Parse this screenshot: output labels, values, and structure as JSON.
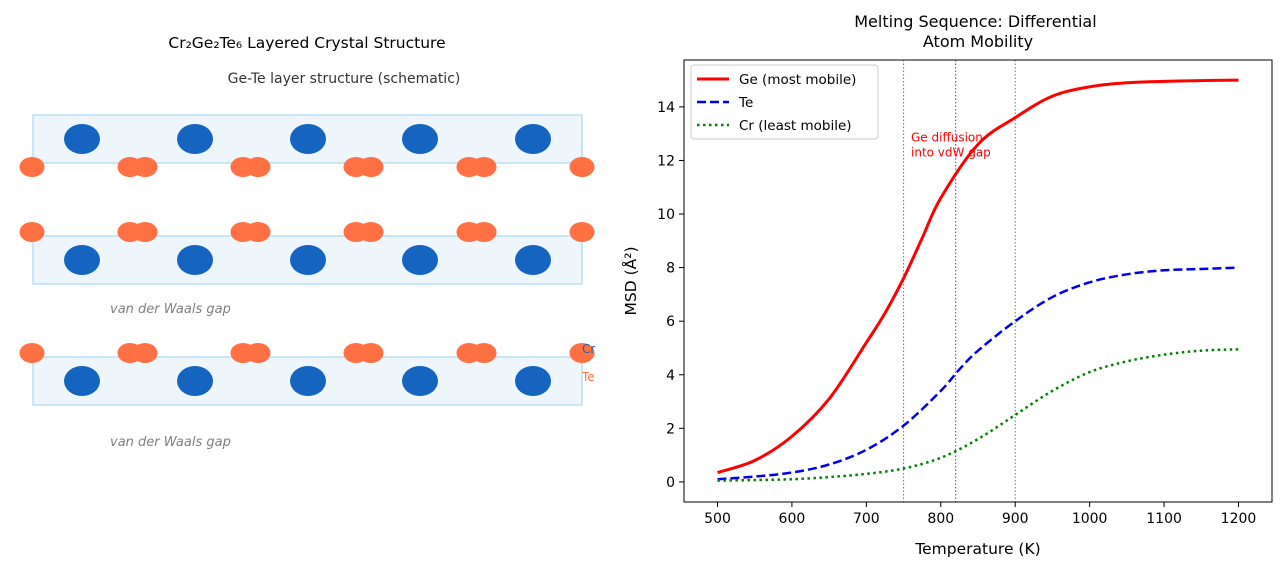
{
  "left_panel": {
    "title": "Cr₂Ge₂Te₆ Layered Crystal Structure",
    "subtitle": "Ge-Te layer structure (schematic)",
    "gap_labels": [
      "van der Waals gap",
      "van der Waals gap"
    ],
    "legend": [
      "Cr",
      "Te"
    ],
    "colors": {
      "cr": "#1565c0",
      "te": "#ff7043",
      "layer_fill": "#eef6fc",
      "layer_edge": "#b9def5"
    }
  },
  "chart_data": {
    "type": "line",
    "title": "Melting Sequence: Differential\nAtom Mobility",
    "xlabel": "Temperature (K)",
    "ylabel": "MSD (Å²)",
    "xlim": [
      455,
      1245
    ],
    "ylim": [
      -0.75,
      15.75
    ],
    "xticks": [
      500,
      600,
      700,
      800,
      900,
      1000,
      1100,
      1200
    ],
    "yticks": [
      0,
      2,
      4,
      6,
      8,
      10,
      12,
      14
    ],
    "legend_position": "top-left",
    "series": [
      {
        "name": "Ge (most mobile)",
        "color": "#ff0000",
        "dash": "solid",
        "width": 3,
        "x": [
          500,
          550,
          600,
          650,
          700,
          725,
          750,
          775,
          800,
          850,
          900,
          950,
          1000,
          1050,
          1100,
          1150,
          1200
        ],
        "y": [
          0.35,
          0.8,
          1.7,
          3.1,
          5.2,
          6.3,
          7.6,
          9.1,
          10.6,
          12.6,
          13.6,
          14.4,
          14.75,
          14.9,
          14.95,
          14.98,
          15.0
        ]
      },
      {
        "name": "Te",
        "color": "#0000ee",
        "dash": "dashed",
        "width": 2.5,
        "x": [
          500,
          550,
          600,
          650,
          700,
          750,
          800,
          825,
          850,
          900,
          950,
          1000,
          1050,
          1100,
          1150,
          1200
        ],
        "y": [
          0.1,
          0.2,
          0.35,
          0.65,
          1.2,
          2.1,
          3.4,
          4.2,
          4.9,
          6.0,
          6.9,
          7.45,
          7.75,
          7.9,
          7.95,
          8.0
        ]
      },
      {
        "name": "Cr (least mobile)",
        "color": "#008000",
        "dash": "dotted",
        "width": 2.5,
        "x": [
          500,
          550,
          600,
          650,
          700,
          750,
          800,
          850,
          900,
          950,
          1000,
          1050,
          1100,
          1150,
          1200
        ],
        "y": [
          0.05,
          0.07,
          0.1,
          0.18,
          0.3,
          0.5,
          0.9,
          1.6,
          2.5,
          3.4,
          4.1,
          4.5,
          4.75,
          4.9,
          4.95
        ]
      }
    ],
    "vlines": [
      {
        "x": 750,
        "color": "#ff0000"
      },
      {
        "x": 820,
        "color": "#0000ee"
      },
      {
        "x": 900,
        "color": "#008000"
      }
    ],
    "annotations": [
      {
        "text": "Ge diffusion\ninto vdW gap",
        "x": 760,
        "y": 12.7,
        "color": "#ff0000"
      }
    ]
  }
}
